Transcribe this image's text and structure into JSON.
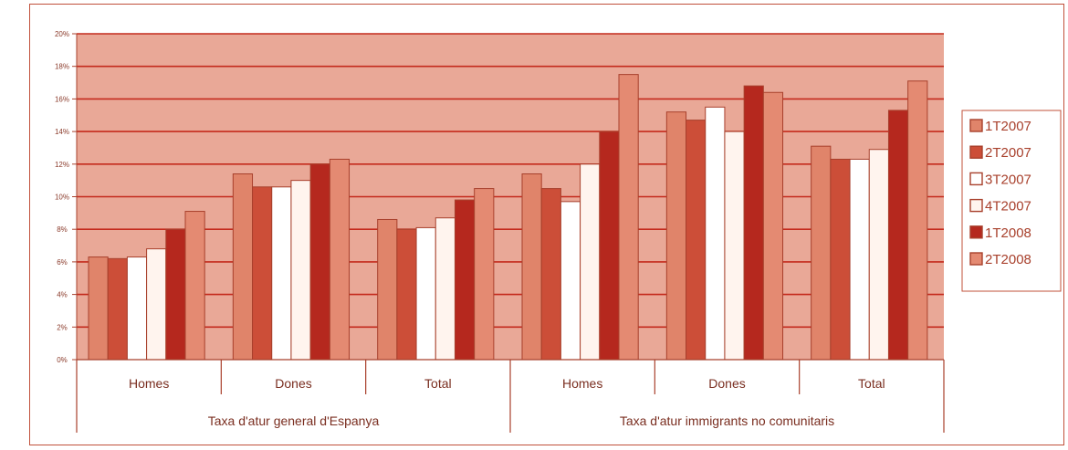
{
  "chart_data": {
    "type": "bar",
    "y_unit_suffix": "%",
    "ylim": [
      0,
      20
    ],
    "yticks": [
      0,
      2,
      4,
      6,
      8,
      10,
      12,
      14,
      16,
      18,
      20
    ],
    "grid": true,
    "legend_position": "right",
    "groups": [
      {
        "label": "Taxa d'atur general d'Espanya",
        "subcategories": [
          "Homes",
          "Dones",
          "Total"
        ]
      },
      {
        "label": "Taxa d'atur immigrants no comunitaris",
        "subcategories": [
          "Homes",
          "Dones",
          "Total"
        ]
      }
    ],
    "categories": [
      "Homes",
      "Dones",
      "Total",
      "Homes",
      "Dones",
      "Total"
    ],
    "series": [
      {
        "name": "1T2007",
        "color": "#e0846a",
        "values": [
          6.3,
          11.4,
          8.6,
          11.4,
          15.2,
          13.1
        ]
      },
      {
        "name": "2T2007",
        "color": "#cc4e38",
        "values": [
          6.2,
          10.6,
          8.0,
          10.5,
          14.7,
          12.3
        ]
      },
      {
        "name": "3T2007",
        "color": "#ffffff",
        "values": [
          6.3,
          10.6,
          8.1,
          9.7,
          15.5,
          12.3
        ]
      },
      {
        "name": "4T2007",
        "color": "#fff4ee",
        "values": [
          6.8,
          11.0,
          8.7,
          12.0,
          14.0,
          12.9
        ]
      },
      {
        "name": "1T2008",
        "color": "#b5281e",
        "values": [
          8.0,
          12.0,
          9.8,
          14.0,
          16.8,
          15.3
        ]
      },
      {
        "name": "2T2008",
        "color": "#e48a72",
        "values": [
          9.1,
          12.3,
          10.5,
          17.5,
          16.4,
          17.1
        ]
      }
    ],
    "colors": {
      "plot_background": "#e9a897",
      "gridline": "#c42a1c",
      "bar_stroke": "#a8402c",
      "axis": "#a8402c",
      "frame": "#c0503a"
    }
  }
}
